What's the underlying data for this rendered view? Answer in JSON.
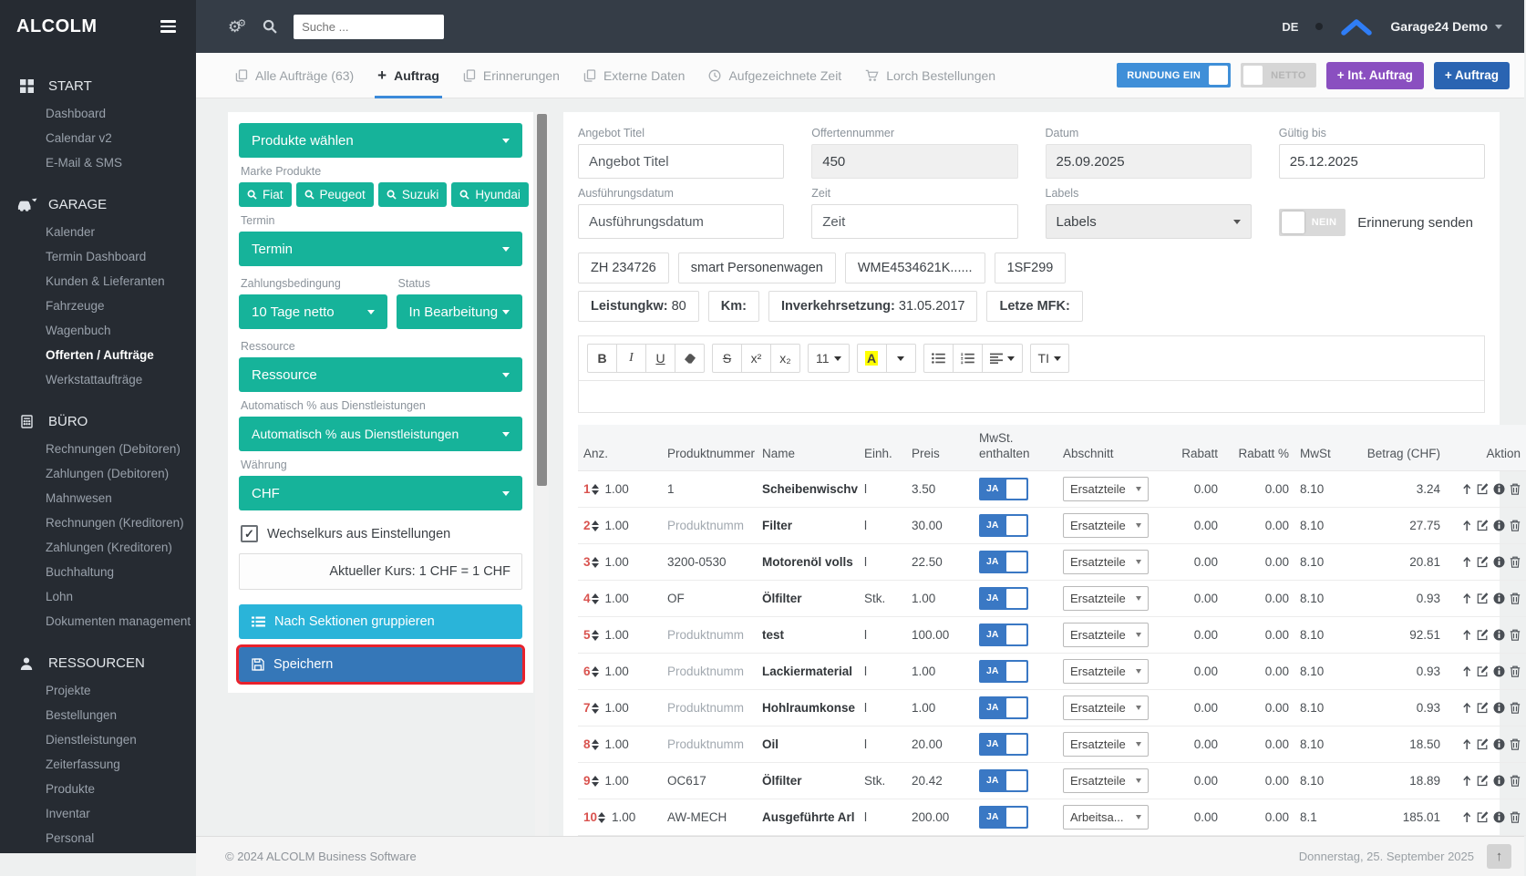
{
  "colors": {
    "teal": "#16b39a",
    "blue_button": "#2a64b2",
    "purple": "#8a4fc0",
    "cyan": "#2ab4d9",
    "save_blue": "#3577b8",
    "toggle_blue": "#3f8fd8",
    "ja_blue": "#3a78c4",
    "highlight_red": "#e8222d",
    "row_number_red": "#d9534f",
    "sidebar_bg": "#262b32",
    "topbar_bg": "#353d47",
    "tab_underline": "#3b8ad9"
  },
  "app": {
    "logo": "ALCOLM",
    "search_placeholder": "Suche ...",
    "lang": "DE",
    "account": "Garage24 Demo"
  },
  "sidebar": {
    "sections": [
      {
        "label": "START",
        "icon": "grid-icon",
        "items": [
          {
            "label": "Dashboard"
          },
          {
            "label": "Calendar v2"
          },
          {
            "label": "E-Mail & SMS"
          }
        ]
      },
      {
        "label": "GARAGE",
        "icon": "car-icon",
        "items": [
          {
            "label": "Kalender"
          },
          {
            "label": "Termin Dashboard"
          },
          {
            "label": "Kunden & Lieferanten"
          },
          {
            "label": "Fahrzeuge"
          },
          {
            "label": "Wagenbuch"
          },
          {
            "label": "Offerten / Aufträge",
            "active": true
          },
          {
            "label": "Werkstattaufträge"
          }
        ]
      },
      {
        "label": "BÜRO",
        "icon": "calculator-icon",
        "items": [
          {
            "label": "Rechnungen (Debitoren)"
          },
          {
            "label": "Zahlungen (Debitoren)"
          },
          {
            "label": "Mahnwesen"
          },
          {
            "label": "Rechnungen (Kreditoren)"
          },
          {
            "label": "Zahlungen (Kreditoren)"
          },
          {
            "label": "Buchhaltung"
          },
          {
            "label": "Lohn"
          },
          {
            "label": "Dokumenten management"
          }
        ]
      },
      {
        "label": "RESSOURCEN",
        "icon": "person-icon",
        "items": [
          {
            "label": "Projekte"
          },
          {
            "label": "Bestellungen"
          },
          {
            "label": "Dienstleistungen"
          },
          {
            "label": "Zeiterfassung"
          },
          {
            "label": "Produkte"
          },
          {
            "label": "Inventar"
          },
          {
            "label": "Personal"
          }
        ]
      }
    ]
  },
  "tabs": [
    {
      "label": "Alle Aufträge (63)",
      "icon": "copy-icon"
    },
    {
      "label": "Auftrag",
      "icon": "plus-icon",
      "active": true
    },
    {
      "label": "Erinnerungen",
      "icon": "copy-icon"
    },
    {
      "label": "Externe Daten",
      "icon": "copy-icon"
    },
    {
      "label": "Aufgezeichnete Zeit",
      "icon": "clock-icon"
    },
    {
      "label": "Lorch Bestellungen",
      "icon": "cart-icon"
    }
  ],
  "header_actions": {
    "rounding_toggle": "RUNDUNG EIN",
    "netto_toggle": "NETTO",
    "int_auftrag_button": "+ Int. Auftrag",
    "auftrag_button": "+ Auftrag"
  },
  "filters": {
    "produkte_select": "Produkte wählen",
    "marke_label": "Marke Produkte",
    "brands": [
      "Fiat",
      "Peugeot",
      "Suzuki",
      "Hyundai"
    ],
    "termin_label": "Termin",
    "termin_select": "Termin",
    "zahlung_label": "Zahlungsbedingung",
    "zahlung_select": "10 Tage netto",
    "status_label": "Status",
    "status_select": "In Bearbeitung",
    "ressource_label": "Ressource",
    "ressource_select": "Ressource",
    "auto_label": "Automatisch % aus Dienstleistungen",
    "auto_select": "Automatisch % aus Dienstleistungen",
    "waehrung_label": "Währung",
    "waehrung_select": "CHF",
    "wechselkurs_checkbox": "Wechselkurs aus Einstellungen",
    "kurs_text": "Aktueller Kurs: 1 CHF = 1 CHF",
    "gruppieren_button": "Nach Sektionen gruppieren",
    "speichern_button": "Speichern"
  },
  "form": {
    "fields": [
      {
        "label": "Angebot Titel",
        "placeholder": "Angebot Titel"
      },
      {
        "label": "Offertennummer",
        "value": "450"
      },
      {
        "label": "Datum",
        "value": "25.09.2025"
      },
      {
        "label": "Gültig bis",
        "value": "25.12.2025"
      },
      {
        "label": "Ausführungsdatum",
        "placeholder": "Ausführungsdatum"
      },
      {
        "label": "Zeit",
        "placeholder": "Zeit"
      },
      {
        "label": "Labels",
        "value": "Labels"
      }
    ],
    "erinnerung_toggle": "NEIN",
    "erinnerung_label": "Erinnerung senden",
    "vehicle_chips": [
      "ZH 234726",
      "smart Personenwagen",
      "WME4534621K......",
      "1SF299"
    ],
    "info_chips": [
      {
        "label": "Leistungkw:",
        "value": "80"
      },
      {
        "label": "Km:",
        "value": ""
      },
      {
        "label": "Inverkehrsetzung:",
        "value": "31.05.2017"
      },
      {
        "label": "Letze MFK:",
        "value": ""
      }
    ]
  },
  "editor": {
    "groups": [
      {
        "items": [
          {
            "t": "B",
            "cls": "b"
          },
          {
            "t": "I",
            "cls": "i"
          },
          {
            "t": "U",
            "cls": "u"
          },
          {
            "icon": "eraser-icon"
          }
        ]
      },
      {
        "items": [
          {
            "t": "S",
            "cls": "strike"
          },
          {
            "t": "x²"
          },
          {
            "t": "x₂"
          }
        ]
      },
      {
        "items": [
          {
            "t": "11",
            "caret": true
          }
        ]
      },
      {
        "items": [
          {
            "t": "A",
            "hl": true
          },
          {
            "caret": true
          }
        ]
      },
      {
        "items": [
          {
            "icon": "ul-icon"
          },
          {
            "icon": "ol-icon"
          },
          {
            "icon": "align-icon",
            "caret": true
          }
        ]
      },
      {
        "items": [
          {
            "t": "TI",
            "caret": true
          }
        ]
      }
    ]
  },
  "table": {
    "headers": [
      "Anz.",
      "Produktnummer",
      "Name",
      "Einh.",
      "Preis",
      "MwSt. enthalten",
      "Abschnitt",
      "Rabatt",
      "Rabatt %",
      "MwSt",
      "Betrag (CHF)",
      "Aktion"
    ],
    "toggle_on": "JA",
    "pn_placeholder": "Produktnumm",
    "rows": [
      {
        "num": "1",
        "qty": "1.00",
        "produktnummer": "1",
        "name": "Scheibenwischv",
        "einh": "l",
        "preis": "3.50",
        "abschnitt": "Ersatzteile",
        "rabatt": "0.00",
        "rabatt_pct": "0.00",
        "mwst": "8.10",
        "betrag": "3.24"
      },
      {
        "num": "2",
        "qty": "1.00",
        "produktnummer": "",
        "name": "Filter",
        "einh": "l",
        "preis": "30.00",
        "abschnitt": "Ersatzteile",
        "rabatt": "0.00",
        "rabatt_pct": "0.00",
        "mwst": "8.10",
        "betrag": "27.75"
      },
      {
        "num": "3",
        "qty": "1.00",
        "produktnummer": "3200-0530",
        "name": "Motorenöl volls",
        "einh": "l",
        "preis": "22.50",
        "abschnitt": "Ersatzteile",
        "rabatt": "0.00",
        "rabatt_pct": "0.00",
        "mwst": "8.10",
        "betrag": "20.81"
      },
      {
        "num": "4",
        "qty": "1.00",
        "produktnummer": "OF",
        "name": "Ölfilter",
        "einh": "Stk.",
        "preis": "1.00",
        "abschnitt": "Ersatzteile",
        "rabatt": "0.00",
        "rabatt_pct": "0.00",
        "mwst": "8.10",
        "betrag": "0.93"
      },
      {
        "num": "5",
        "qty": "1.00",
        "produktnummer": "",
        "name": "test",
        "einh": "l",
        "preis": "100.00",
        "abschnitt": "Ersatzteile",
        "rabatt": "0.00",
        "rabatt_pct": "0.00",
        "mwst": "8.10",
        "betrag": "92.51"
      },
      {
        "num": "6",
        "qty": "1.00",
        "produktnummer": "",
        "name": "Lackiermaterial",
        "einh": "l",
        "preis": "1.00",
        "abschnitt": "Ersatzteile",
        "rabatt": "0.00",
        "rabatt_pct": "0.00",
        "mwst": "8.10",
        "betrag": "0.93"
      },
      {
        "num": "7",
        "qty": "1.00",
        "produktnummer": "",
        "name": "Hohlraumkonse",
        "einh": "l",
        "preis": "1.00",
        "abschnitt": "Ersatzteile",
        "rabatt": "0.00",
        "rabatt_pct": "0.00",
        "mwst": "8.10",
        "betrag": "0.93"
      },
      {
        "num": "8",
        "qty": "1.00",
        "produktnummer": "",
        "name": "Oil",
        "einh": "l",
        "preis": "20.00",
        "abschnitt": "Ersatzteile",
        "rabatt": "0.00",
        "rabatt_pct": "0.00",
        "mwst": "8.10",
        "betrag": "18.50"
      },
      {
        "num": "9",
        "qty": "1.00",
        "produktnummer": "OC617",
        "name": "Ölfilter",
        "einh": "Stk.",
        "preis": "20.42",
        "abschnitt": "Ersatzteile",
        "rabatt": "0.00",
        "rabatt_pct": "0.00",
        "mwst": "8.10",
        "betrag": "18.89"
      },
      {
        "num": "10",
        "qty": "1.00",
        "produktnummer": "AW-MECH",
        "name": "Ausgeführte Arl",
        "einh": "l",
        "preis": "200.00",
        "abschnitt": "Arbeitsa...",
        "rabatt": "0.00",
        "rabatt_pct": "0.00",
        "mwst": "8.1",
        "betrag": "185.01"
      }
    ]
  },
  "footer": {
    "copyright": "© 2024 ALCOLM Business Software",
    "date": "Donnerstag, 25. September 2025"
  }
}
